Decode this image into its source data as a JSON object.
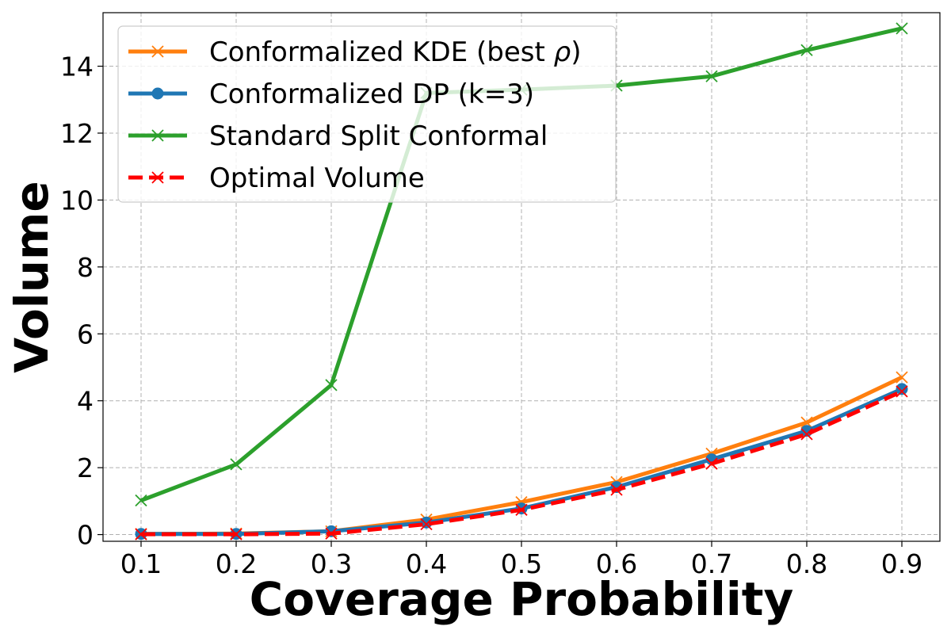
{
  "chart_data": {
    "type": "line",
    "title": "",
    "xlabel": "Coverage Probability",
    "ylabel": "Volume",
    "x": [
      0.1,
      0.2,
      0.3,
      0.4,
      0.5,
      0.6,
      0.7,
      0.8,
      0.9
    ],
    "x_tick_labels": [
      "0.1",
      "0.2",
      "0.3",
      "0.4",
      "0.5",
      "0.6",
      "0.7",
      "0.8",
      "0.9"
    ],
    "y_ticks": [
      0,
      2,
      4,
      6,
      8,
      10,
      12,
      14
    ],
    "y_tick_labels": [
      "0",
      "2",
      "4",
      "6",
      "8",
      "10",
      "12",
      "14"
    ],
    "xlim": [
      0.06,
      0.94
    ],
    "ylim": [
      -0.2,
      15.6
    ],
    "grid": true,
    "legend_position": "top-left",
    "series": [
      {
        "name": "Conformalized KDE (best ",
        "name_symbol": "ρ",
        "name_suffix": ")",
        "color": "#ff7f0e",
        "marker": "x",
        "linestyle": "solid",
        "values": [
          0.02,
          0.03,
          0.1,
          0.45,
          0.97,
          1.57,
          2.42,
          3.35,
          4.7
        ]
      },
      {
        "name": "Conformalized DP (k=3)",
        "color": "#1f77b4",
        "marker": "o",
        "linestyle": "solid",
        "values": [
          0.02,
          0.02,
          0.1,
          0.36,
          0.78,
          1.42,
          2.25,
          3.1,
          4.35
        ]
      },
      {
        "name": "Standard Split Conformal",
        "color": "#2ca02c",
        "marker": "x",
        "linestyle": "solid",
        "values": [
          1.02,
          2.1,
          4.47,
          13.2,
          13.3,
          13.42,
          13.7,
          14.48,
          15.13
        ]
      },
      {
        "name": "Optimal Volume",
        "color": "#ff0000",
        "marker": "x",
        "linestyle": "dashed",
        "values": [
          0.01,
          0.01,
          0.03,
          0.31,
          0.74,
          1.34,
          2.12,
          3.0,
          4.28
        ]
      }
    ]
  }
}
